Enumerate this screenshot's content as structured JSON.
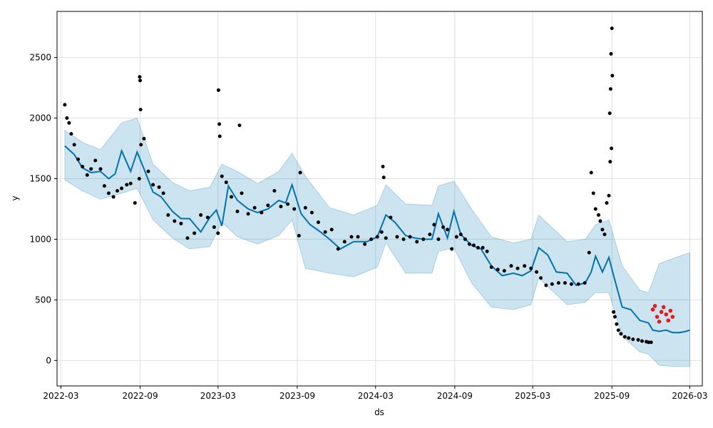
{
  "chart_data": {
    "type": "line",
    "title": "",
    "xlabel": "ds",
    "ylabel": "y",
    "xlim": [
      "2022-02-20",
      "2026-03-30"
    ],
    "ylim": [
      -210,
      2880
    ],
    "grid": true,
    "colors": {
      "forecast_line": "#0072B2",
      "uncertainty_band": "#0072B2",
      "history_points": "#000000",
      "test_points": "#e41a1c",
      "grid": "#e0e0e0"
    },
    "x_ticks": [
      {
        "date": "2022-03-01",
        "label": "2022-03"
      },
      {
        "date": "2022-09-01",
        "label": "2022-09"
      },
      {
        "date": "2023-03-01",
        "label": "2023-03"
      },
      {
        "date": "2023-09-01",
        "label": "2023-09"
      },
      {
        "date": "2024-03-01",
        "label": "2024-03"
      },
      {
        "date": "2024-09-01",
        "label": "2024-09"
      },
      {
        "date": "2025-03-01",
        "label": "2025-03"
      },
      {
        "date": "2025-09-01",
        "label": "2025-09"
      },
      {
        "date": "2026-03-01",
        "label": "2026-03"
      }
    ],
    "y_ticks": [
      0,
      500,
      1000,
      1500,
      2000,
      2500
    ],
    "forecast": {
      "name": "yhat",
      "x": [
        "2022-03-10",
        "2022-04-01",
        "2022-04-20",
        "2022-05-10",
        "2022-06-01",
        "2022-06-20",
        "2022-07-05",
        "2022-07-20",
        "2022-08-10",
        "2022-08-25",
        "2022-09-10",
        "2022-10-01",
        "2022-10-20",
        "2022-11-15",
        "2022-12-05",
        "2022-12-25",
        "2023-01-20",
        "2023-02-10",
        "2023-02-25",
        "2023-03-10",
        "2023-03-25",
        "2023-04-15",
        "2023-05-10",
        "2023-06-01",
        "2023-06-25",
        "2023-07-20",
        "2023-08-05",
        "2023-08-20",
        "2023-09-10",
        "2023-10-01",
        "2023-10-25",
        "2023-11-15",
        "2023-12-10",
        "2024-01-10",
        "2024-02-10",
        "2024-03-05",
        "2024-03-25",
        "2024-04-15",
        "2024-05-10",
        "2024-06-01",
        "2024-06-20",
        "2024-07-10",
        "2024-07-25",
        "2024-08-15",
        "2024-08-30",
        "2024-09-15",
        "2024-10-10",
        "2024-11-01",
        "2024-11-25",
        "2024-12-20",
        "2025-01-15",
        "2025-02-05",
        "2025-02-25",
        "2025-03-15",
        "2025-04-05",
        "2025-04-25",
        "2025-05-20",
        "2025-06-10",
        "2025-07-01",
        "2025-07-15",
        "2025-07-25",
        "2025-08-10",
        "2025-08-25",
        "2025-09-05",
        "2025-09-25",
        "2025-10-15",
        "2025-11-05",
        "2025-11-25",
        "2025-12-05",
        "2025-12-20",
        "2026-01-05",
        "2026-01-20",
        "2026-02-05",
        "2026-02-20",
        "2026-03-01"
      ],
      "values": [
        1770,
        1700,
        1590,
        1550,
        1560,
        1500,
        1540,
        1730,
        1560,
        1720,
        1580,
        1390,
        1350,
        1230,
        1170,
        1170,
        1060,
        1180,
        1240,
        1110,
        1440,
        1320,
        1250,
        1220,
        1250,
        1320,
        1300,
        1450,
        1210,
        1120,
        1060,
        1000,
        920,
        980,
        980,
        1020,
        1200,
        1140,
        1030,
        1010,
        1000,
        1000,
        1210,
        1010,
        1230,
        1040,
        950,
        920,
        780,
        700,
        720,
        700,
        740,
        930,
        870,
        730,
        720,
        620,
        640,
        730,
        860,
        730,
        850,
        700,
        440,
        420,
        330,
        310,
        250,
        240,
        250,
        230,
        230,
        240,
        250
      ]
    },
    "uncertainty": {
      "name": "yhat interval",
      "x": [
        "2022-03-10",
        "2022-04-20",
        "2022-06-01",
        "2022-07-20",
        "2022-08-25",
        "2022-10-01",
        "2022-11-15",
        "2022-12-25",
        "2023-02-10",
        "2023-03-10",
        "2023-04-15",
        "2023-06-01",
        "2023-07-20",
        "2023-08-20",
        "2023-09-20",
        "2023-11-15",
        "2024-01-10",
        "2024-03-05",
        "2024-03-25",
        "2024-05-10",
        "2024-07-10",
        "2024-07-25",
        "2024-08-30",
        "2024-10-10",
        "2024-11-25",
        "2025-01-15",
        "2025-02-25",
        "2025-03-15",
        "2025-05-20",
        "2025-07-01",
        "2025-07-25",
        "2025-08-25",
        "2025-09-25",
        "2025-11-05",
        "2025-11-25",
        "2025-12-20",
        "2026-01-20",
        "2026-03-01"
      ],
      "upper": [
        1900,
        1800,
        1740,
        1960,
        2000,
        1620,
        1470,
        1400,
        1430,
        1620,
        1560,
        1460,
        1560,
        1710,
        1520,
        1260,
        1200,
        1280,
        1450,
        1290,
        1280,
        1440,
        1480,
        1250,
        1020,
        970,
        1000,
        1200,
        980,
        1000,
        1120,
        1160,
        780,
        580,
        560,
        800,
        840,
        890
      ],
      "lower": [
        1490,
        1400,
        1330,
        1380,
        1420,
        1160,
        1010,
        920,
        940,
        1140,
        1020,
        960,
        1030,
        1160,
        760,
        720,
        690,
        770,
        970,
        720,
        720,
        900,
        930,
        640,
        440,
        420,
        460,
        680,
        460,
        480,
        560,
        560,
        200,
        70,
        50,
        -40,
        -50,
        -50
      ]
    },
    "history": {
      "name": "actual",
      "x": [
        "2022-03-10",
        "2022-03-15",
        "2022-03-20",
        "2022-03-25",
        "2022-04-01",
        "2022-04-10",
        "2022-04-20",
        "2022-05-01",
        "2022-05-10",
        "2022-05-20",
        "2022-06-01",
        "2022-06-10",
        "2022-06-20",
        "2022-07-01",
        "2022-07-10",
        "2022-07-20",
        "2022-08-01",
        "2022-08-10",
        "2022-08-20",
        "2022-08-30",
        "2022-09-03",
        "2022-09-10",
        "2022-09-20",
        "2022-10-01",
        "2022-10-15",
        "2022-10-25",
        "2022-11-05",
        "2022-11-20",
        "2022-12-05",
        "2022-12-20",
        "2023-01-05",
        "2023-01-20",
        "2023-02-05",
        "2023-02-20",
        "2023-03-01",
        "2023-03-05",
        "2023-03-10",
        "2023-03-20",
        "2023-04-01",
        "2023-04-15",
        "2023-04-25",
        "2023-05-10",
        "2023-05-25",
        "2023-06-10",
        "2023-06-25",
        "2023-07-10",
        "2023-07-25",
        "2023-08-10",
        "2023-08-25",
        "2023-09-05",
        "2023-09-20",
        "2023-10-05",
        "2023-10-20",
        "2023-11-05",
        "2023-11-20",
        "2023-12-05",
        "2023-12-20",
        "2024-01-05",
        "2024-01-20",
        "2024-02-05",
        "2024-02-20",
        "2024-03-05",
        "2024-03-15",
        "2024-03-25",
        "2024-04-05",
        "2024-04-20",
        "2024-05-05",
        "2024-05-20",
        "2024-06-05",
        "2024-06-20",
        "2024-07-05",
        "2024-07-15",
        "2024-07-25",
        "2024-08-05",
        "2024-08-15",
        "2024-08-25",
        "2024-09-05",
        "2024-09-15",
        "2024-09-25",
        "2024-10-05",
        "2024-10-15",
        "2024-10-25",
        "2024-11-05",
        "2024-11-15",
        "2024-11-25",
        "2024-12-10",
        "2024-12-25",
        "2025-01-10",
        "2025-01-25",
        "2025-02-10",
        "2025-02-25",
        "2025-03-10",
        "2025-03-20",
        "2025-04-01",
        "2025-04-15",
        "2025-04-30",
        "2025-05-15",
        "2025-05-30",
        "2025-06-15",
        "2025-06-30",
        "2025-07-10",
        "2025-07-15",
        "2025-07-20",
        "2025-07-25",
        "2025-08-01",
        "2025-08-05",
        "2025-08-10",
        "2025-08-15",
        "2025-08-20",
        "2025-08-25",
        "2025-08-28",
        "2025-08-31",
        "2025-09-02",
        "2025-09-05",
        "2025-09-08",
        "2025-09-12",
        "2025-09-16",
        "2025-09-22",
        "2025-10-01",
        "2025-10-10",
        "2025-10-20",
        "2025-11-01",
        "2025-11-10",
        "2025-11-20",
        "2025-11-25",
        "2025-12-01"
      ],
      "y": [
        2110,
        2000,
        1960,
        1870,
        1780,
        1660,
        1600,
        1530,
        1580,
        1650,
        1580,
        1440,
        1380,
        1350,
        1400,
        1420,
        1450,
        1460,
        1300,
        1500,
        1780,
        1830,
        1560,
        1450,
        1430,
        1380,
        1200,
        1150,
        1130,
        1010,
        1050,
        1200,
        1180,
        1100,
        1050,
        1850,
        1520,
        1470,
        1350,
        1230,
        1380,
        1210,
        1260,
        1220,
        1280,
        1400,
        1270,
        1290,
        1250,
        1030,
        1260,
        1220,
        1140,
        1060,
        1080,
        920,
        980,
        1020,
        1020,
        960,
        1000,
        1020,
        1060,
        1010,
        1180,
        1020,
        1000,
        1020,
        980,
        1000,
        1040,
        1120,
        1000,
        1100,
        1080,
        920,
        1020,
        1040,
        1000,
        960,
        950,
        930,
        930,
        900,
        770,
        750,
        740,
        780,
        760,
        780,
        760,
        730,
        680,
        620,
        630,
        640,
        640,
        630,
        630,
        640,
        890,
        1550,
        1380,
        1250,
        1200,
        1150,
        1080,
        1040,
        1300,
        1360,
        1640,
        1750,
        2350,
        400,
        360,
        300,
        250,
        220,
        195,
        185,
        175,
        170,
        160,
        155,
        150,
        150
      ]
    },
    "outliers": {
      "name": "actual spikes",
      "x": [
        "2022-08-31",
        "2022-09-01",
        "2022-09-02",
        "2023-03-02",
        "2023-03-04",
        "2023-04-20",
        "2023-09-08",
        "2024-03-18",
        "2024-03-20",
        "2025-08-27",
        "2025-08-29",
        "2025-08-30",
        "2025-09-01"
      ],
      "y": [
        2340,
        2310,
        2070,
        2230,
        1950,
        1940,
        1550,
        1600,
        1510,
        2040,
        2240,
        2530,
        2740
      ]
    },
    "test": {
      "name": "test actual",
      "x": [
        "2025-12-05",
        "2025-12-10",
        "2025-12-15",
        "2025-12-20",
        "2025-12-25",
        "2025-12-30",
        "2026-01-05",
        "2026-01-10",
        "2026-01-15",
        "2026-01-20"
      ],
      "y": [
        420,
        450,
        360,
        320,
        400,
        440,
        380,
        330,
        410,
        360
      ]
    }
  }
}
